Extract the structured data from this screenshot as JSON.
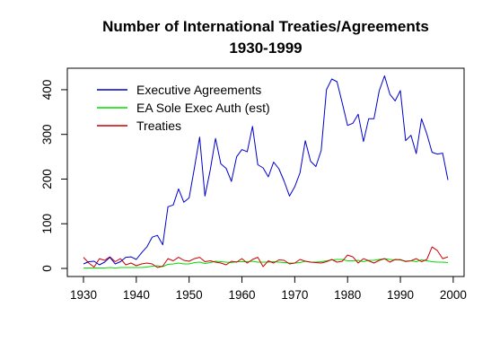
{
  "chart_data": {
    "type": "line",
    "title": "Number of International Treaties/Agreements",
    "subtitle": "1930-1999",
    "xlabel": "",
    "ylabel": "",
    "xlim": [
      1930,
      1999
    ],
    "ylim": [
      0,
      430
    ],
    "x_ticks": [
      1930,
      1940,
      1950,
      1960,
      1970,
      1980,
      1990,
      2000
    ],
    "y_ticks": [
      0,
      100,
      200,
      300,
      400
    ],
    "legend_position": "top-left",
    "grid": false,
    "x": [
      1930,
      1931,
      1932,
      1933,
      1934,
      1935,
      1936,
      1937,
      1938,
      1939,
      1940,
      1941,
      1942,
      1943,
      1944,
      1945,
      1946,
      1947,
      1948,
      1949,
      1950,
      1951,
      1952,
      1953,
      1954,
      1955,
      1956,
      1957,
      1958,
      1959,
      1960,
      1961,
      1962,
      1963,
      1964,
      1965,
      1966,
      1967,
      1968,
      1969,
      1970,
      1971,
      1972,
      1973,
      1974,
      1975,
      1976,
      1977,
      1978,
      1979,
      1980,
      1981,
      1982,
      1983,
      1984,
      1985,
      1986,
      1987,
      1988,
      1989,
      1990,
      1991,
      1992,
      1993,
      1994,
      1995,
      1996,
      1997,
      1998,
      1999
    ],
    "series": [
      {
        "name": "Executive Agreements",
        "color": "#0000cc",
        "values": [
          10,
          15,
          16,
          8,
          14,
          25,
          10,
          15,
          25,
          26,
          20,
          35,
          48,
          70,
          74,
          53,
          138,
          142,
          178,
          148,
          158,
          225,
          294,
          162,
          220,
          291,
          234,
          224,
          195,
          250,
          266,
          261,
          318,
          232,
          225,
          205,
          238,
          223,
          195,
          162,
          183,
          214,
          286,
          240,
          228,
          264,
          400,
          424,
          418,
          370,
          320,
          325,
          345,
          284,
          335,
          335,
          398,
          431,
          390,
          375,
          398,
          286,
          298,
          257,
          335,
          301,
          260,
          256,
          258,
          198
        ]
      },
      {
        "name": "EA Sole Exec Auth (est)",
        "color": "#00dd00",
        "values": [
          1,
          1,
          1,
          1,
          1,
          2,
          1,
          2,
          2,
          2,
          2,
          2,
          3,
          5,
          6,
          4,
          9,
          10,
          12,
          10,
          10,
          13,
          14,
          11,
          13,
          16,
          15,
          14,
          13,
          15,
          15,
          15,
          16,
          14,
          14,
          14,
          15,
          14,
          13,
          12,
          12,
          13,
          16,
          14,
          14,
          15,
          17,
          19,
          20,
          20,
          17,
          17,
          18,
          15,
          18,
          18,
          20,
          22,
          20,
          19,
          20,
          15,
          17,
          15,
          19,
          17,
          15,
          14,
          14,
          13
        ]
      },
      {
        "name": "Treaties",
        "color": "#cc0000",
        "values": [
          25,
          12,
          3,
          22,
          18,
          26,
          15,
          22,
          8,
          12,
          6,
          10,
          12,
          10,
          2,
          5,
          22,
          17,
          25,
          18,
          16,
          22,
          25,
          15,
          17,
          14,
          12,
          8,
          16,
          14,
          22,
          12,
          20,
          25,
          4,
          17,
          12,
          19,
          18,
          10,
          12,
          20,
          16,
          14,
          13,
          12,
          15,
          20,
          14,
          16,
          30,
          26,
          12,
          22,
          17,
          12,
          18,
          22,
          14,
          20,
          19,
          16,
          17,
          22,
          15,
          20,
          48,
          40,
          22,
          26
        ]
      }
    ]
  }
}
